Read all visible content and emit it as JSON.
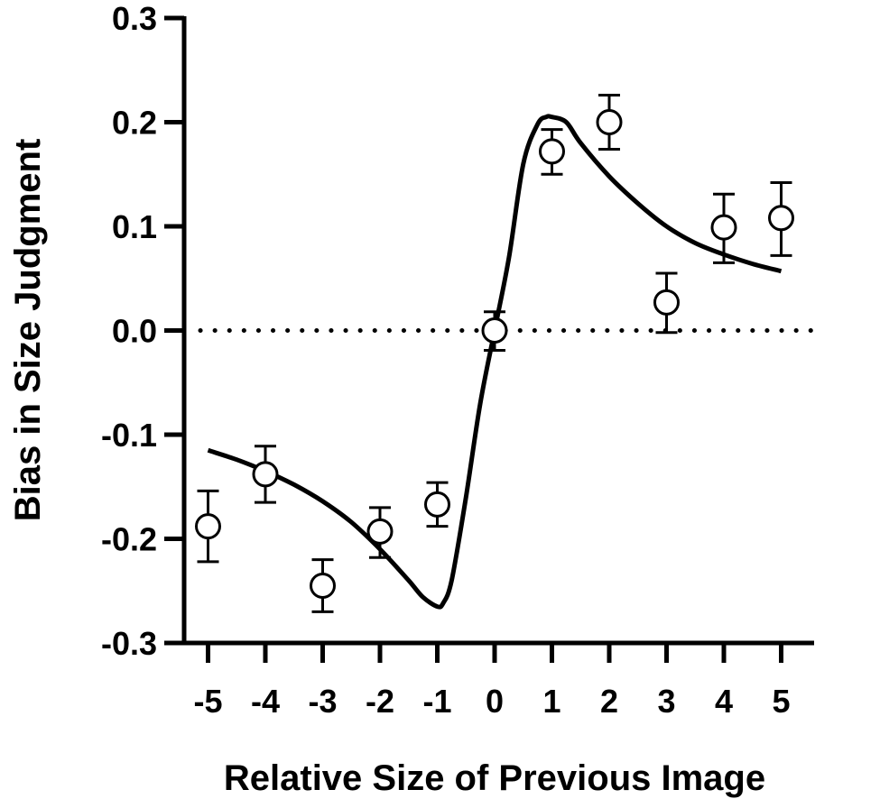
{
  "chart_data": {
    "type": "scatter",
    "title": "",
    "xlabel": "Relative Size of Previous Image",
    "ylabel": "Bias in Size Judgment",
    "xlim": [
      -5.5,
      5.5
    ],
    "ylim": [
      -0.3,
      0.3
    ],
    "x_ticks": [
      -5,
      -4,
      -3,
      -2,
      -1,
      0,
      1,
      2,
      3,
      4,
      5
    ],
    "x_tick_labels": [
      "-5",
      "-4",
      "-3",
      "-2",
      "-1",
      "0",
      "1",
      "2",
      "3",
      "4",
      "5"
    ],
    "y_ticks": [
      0.3,
      0.2,
      0.1,
      0.0,
      -0.1,
      -0.2,
      -0.3
    ],
    "y_tick_labels": [
      "0.3",
      "0.2",
      "0.1",
      "0.0",
      "-0.1",
      "-0.2",
      "-0.3"
    ],
    "grid": false,
    "reference_line": {
      "y": 0.0,
      "style": "dotted"
    },
    "series": [
      {
        "marker": "open-circle",
        "x": [
          -5,
          -4,
          -3,
          -2,
          -1,
          0,
          1,
          2,
          3,
          4,
          5
        ],
        "y": [
          -0.188,
          -0.138,
          -0.245,
          -0.193,
          -0.167,
          0.0,
          0.172,
          0.2,
          0.027,
          0.099,
          0.108
        ],
        "error_lower": [
          -0.222,
          -0.165,
          -0.27,
          -0.218,
          -0.188,
          -0.019,
          0.15,
          0.174,
          -0.002,
          0.065,
          0.072
        ],
        "error_upper": [
          -0.154,
          -0.111,
          -0.22,
          -0.17,
          -0.146,
          0.018,
          0.193,
          0.226,
          0.055,
          0.131,
          0.142
        ]
      },
      {
        "type": "line",
        "marker": "none",
        "x": [
          -5,
          -4.5,
          -4,
          -3.5,
          -3,
          -2.5,
          -2,
          -1.5,
          -1.25,
          -1,
          -0.9,
          -0.75,
          -0.5,
          -0.25,
          0,
          0.25,
          0.5,
          0.75,
          0.9,
          1,
          1.25,
          1.5,
          2,
          2.5,
          3,
          3.5,
          4,
          4.5,
          5
        ],
        "y": [
          -0.115,
          -0.124,
          -0.135,
          -0.148,
          -0.164,
          -0.184,
          -0.21,
          -0.24,
          -0.256,
          -0.265,
          -0.262,
          -0.24,
          -0.16,
          -0.07,
          0.0,
          0.07,
          0.16,
          0.198,
          0.205,
          0.205,
          0.2,
          0.18,
          0.148,
          0.122,
          0.1,
          0.084,
          0.073,
          0.064,
          0.057
        ]
      }
    ]
  }
}
